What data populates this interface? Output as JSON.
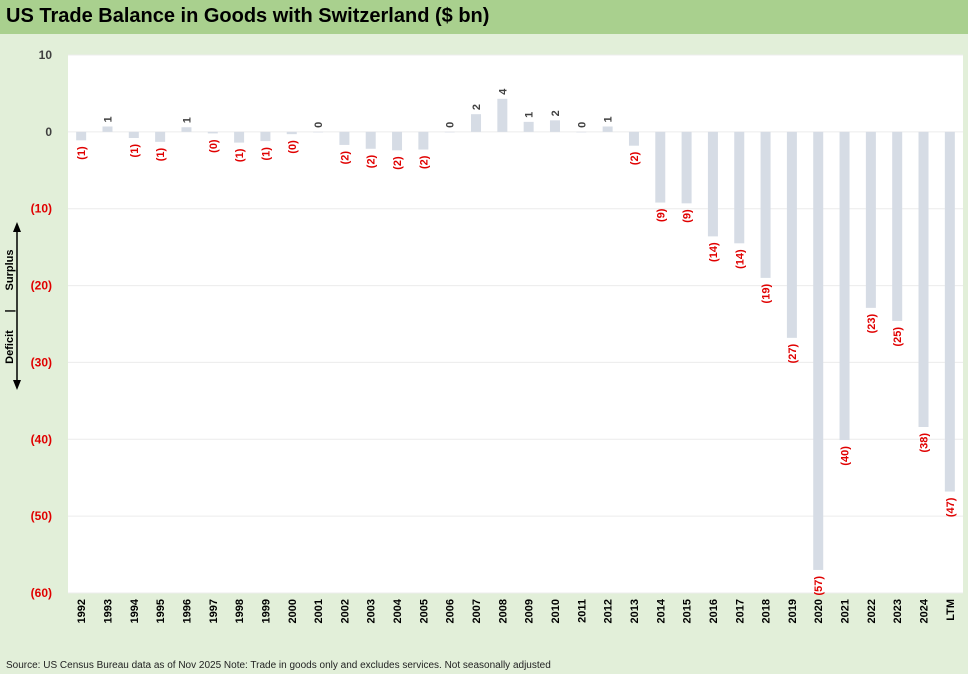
{
  "title": "US Trade Balance in Goods with Switzerland ($ bn)",
  "source": "Source: US Census Bureau data as of Nov 2025 Note: Trade in goods only and excludes services. Not seasonally adjusted",
  "side_labels": {
    "surplus": "Surplus",
    "deficit": "Deficit",
    "divider": "|"
  },
  "colors": {
    "bar": "#d6dce5",
    "negative_label": "#e00000",
    "positive_label": "#404040",
    "plot_bg": "#ffffff",
    "page_bg": "#e2efd9",
    "title_bg": "#a9d08e"
  },
  "chart_data": {
    "type": "bar",
    "title": "US Trade Balance in Goods with Switzerland ($ bn)",
    "xlabel": "",
    "ylabel": "",
    "ylim": [
      -60,
      10
    ],
    "yticks": [
      10,
      0,
      -10,
      -20,
      -30,
      -40,
      -50,
      -60
    ],
    "ytick_labels": [
      "10",
      "0",
      "(10)",
      "(20)",
      "(30)",
      "(40)",
      "(50)",
      "(60)"
    ],
    "categories": [
      "1992",
      "1993",
      "1994",
      "1995",
      "1996",
      "1997",
      "1998",
      "1999",
      "2000",
      "2001",
      "2002",
      "2003",
      "2004",
      "2005",
      "2006",
      "2007",
      "2008",
      "2009",
      "2010",
      "2011",
      "2012",
      "2013",
      "2014",
      "2015",
      "2016",
      "2017",
      "2018",
      "2019",
      "2020",
      "2021",
      "2022",
      "2023",
      "2024",
      "LTM"
    ],
    "values": [
      -1.1,
      0.7,
      -0.8,
      -1.3,
      0.6,
      -0.2,
      -1.4,
      -1.2,
      -0.3,
      0.0,
      -1.7,
      -2.2,
      -2.4,
      -2.3,
      0.0,
      2.3,
      4.3,
      1.3,
      1.5,
      0.0,
      0.7,
      -1.8,
      -9.2,
      -9.3,
      -13.6,
      -14.5,
      -19.0,
      -26.8,
      -57.0,
      -40.1,
      -22.9,
      -24.6,
      -38.4,
      -46.8
    ],
    "data_labels": [
      "(1)",
      "1",
      "(1)",
      "(1)",
      "1",
      "(0)",
      "(1)",
      "(1)",
      "(0)",
      "0",
      "(2)",
      "(2)",
      "(2)",
      "(2)",
      "0",
      "2",
      "4",
      "1",
      "2",
      "0",
      "1",
      "(2)",
      "(9)",
      "(9)",
      "(14)",
      "(14)",
      "(19)",
      "(27)",
      "(57)",
      "(40)",
      "(23)",
      "(25)",
      "(38)",
      "(47)"
    ]
  }
}
